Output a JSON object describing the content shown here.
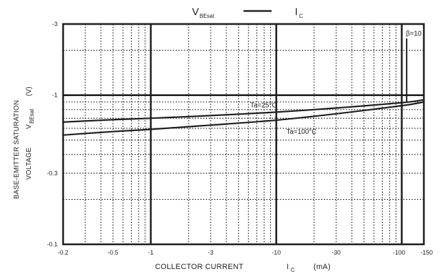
{
  "colors": {
    "line": "#1e1e1e",
    "grid": "#3a3a3a",
    "text": "#222222",
    "background": "#ffffff"
  },
  "chart_data": {
    "type": "line",
    "title": {
      "left_main": "V",
      "left_sub": "BEsat",
      "right_main": "I",
      "right_sub": "C"
    },
    "xlabel": {
      "main": "COLLECTOR CURRENT",
      "symbol": "I",
      "symbol_sub": "C",
      "unit": "(mA)"
    },
    "ylabel": {
      "line1": "BASE-EMITTER SATURATION",
      "line2": "VOLTAGE",
      "symbol": "V",
      "symbol_sub": "BEsat",
      "unit": "(V)"
    },
    "x_scale": "log",
    "y_scale": "log",
    "xlim": [
      -0.2,
      -150
    ],
    "ylim": [
      -0.1,
      -3
    ],
    "x_ticks": [
      {
        "value": -0.2,
        "label": "-0.2"
      },
      {
        "value": -0.5,
        "label": "-0.5"
      },
      {
        "value": -1,
        "label": "-1"
      },
      {
        "value": -3,
        "label": "-3"
      },
      {
        "value": -10,
        "label": "-10"
      },
      {
        "value": -30,
        "label": "-30"
      },
      {
        "value": -100,
        "label": "-100"
      },
      {
        "value": -150,
        "label": "-150"
      }
    ],
    "y_ticks": [
      {
        "value": -3,
        "label": "-3"
      },
      {
        "value": -1,
        "label": "-1"
      },
      {
        "value": -0.3,
        "label": "-0.3"
      },
      {
        "value": -0.1,
        "label": "-0.1"
      }
    ],
    "major_x_grid": [
      -1,
      -10,
      -100
    ],
    "minor_x_grid": [
      -0.3,
      -0.4,
      -0.5,
      -0.6,
      -0.7,
      -0.8,
      -0.9,
      -2,
      -3,
      -4,
      -5,
      -6,
      -7,
      -8,
      -9,
      -20,
      -30,
      -40,
      -50,
      -60,
      -70,
      -80,
      -90
    ],
    "major_y_grid": [
      -1
    ],
    "minor_y_grid": [
      -0.2,
      -0.3,
      -0.4,
      -0.5,
      -0.6,
      -0.7,
      -0.8,
      -0.9,
      -2
    ],
    "grid": true,
    "series": [
      {
        "name": "Ta=25°C",
        "x": [
          -0.2,
          -0.5,
          -1,
          -3,
          -10,
          -30,
          -100,
          -150
        ],
        "y": [
          -0.66,
          -0.685,
          -0.7,
          -0.73,
          -0.77,
          -0.82,
          -0.89,
          -0.93
        ]
      },
      {
        "name": "Ta=100°C",
        "x": [
          -0.2,
          -0.5,
          -1,
          -3,
          -10,
          -30,
          -100,
          -150
        ],
        "y": [
          -0.54,
          -0.57,
          -0.59,
          -0.63,
          -0.68,
          -0.75,
          -0.85,
          -0.9
        ]
      }
    ],
    "annotations": [
      {
        "text": "Ta=25°C",
        "at": [
          -6.2,
          -0.83
        ]
      },
      {
        "text": "Ta=100°C",
        "at": [
          -12,
          -0.55
        ]
      },
      {
        "text": "β=10",
        "at": [
          -108,
          -2.5
        ]
      }
    ]
  }
}
